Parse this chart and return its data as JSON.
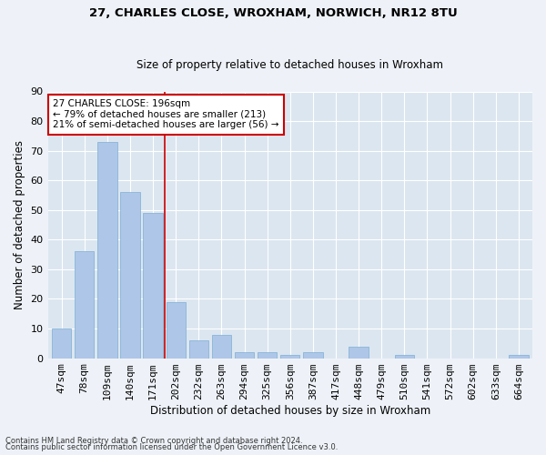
{
  "title1": "27, CHARLES CLOSE, WROXHAM, NORWICH, NR12 8TU",
  "title2": "Size of property relative to detached houses in Wroxham",
  "xlabel": "Distribution of detached houses by size in Wroxham",
  "ylabel": "Number of detached properties",
  "categories": [
    "47sqm",
    "78sqm",
    "109sqm",
    "140sqm",
    "171sqm",
    "202sqm",
    "232sqm",
    "263sqm",
    "294sqm",
    "325sqm",
    "356sqm",
    "387sqm",
    "417sqm",
    "448sqm",
    "479sqm",
    "510sqm",
    "541sqm",
    "572sqm",
    "602sqm",
    "633sqm",
    "664sqm"
  ],
  "values": [
    10,
    36,
    73,
    56,
    49,
    19,
    6,
    8,
    2,
    2,
    1,
    2,
    0,
    4,
    0,
    1,
    0,
    0,
    0,
    0,
    1
  ],
  "bar_color": "#aec6e8",
  "bar_edge_color": "#7bafd4",
  "vline_color": "#cc0000",
  "annotation_line1": "27 CHARLES CLOSE: 196sqm",
  "annotation_line2": "← 79% of detached houses are smaller (213)",
  "annotation_line3": "21% of semi-detached houses are larger (56) →",
  "annotation_box_color": "#ffffff",
  "annotation_box_edge_color": "#cc0000",
  "ylim": [
    0,
    90
  ],
  "yticks": [
    0,
    10,
    20,
    30,
    40,
    50,
    60,
    70,
    80,
    90
  ],
  "fig_bg_color": "#eef2f8",
  "ax_bg_color": "#dce6f0",
  "grid_color": "#ffffff",
  "footer_line1": "Contains HM Land Registry data © Crown copyright and database right 2024.",
  "footer_line2": "Contains public sector information licensed under the Open Government Licence v3.0."
}
